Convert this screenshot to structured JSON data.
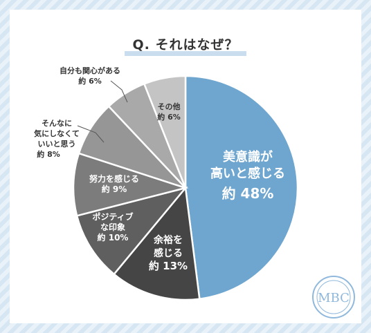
{
  "title": "Q. それはなぜ？",
  "colors": {
    "slice_1": "#6fa6cf",
    "slice_2": "#454545",
    "slice_3": "#5f5f5f",
    "slice_4": "#7c7c7c",
    "slice_5": "#969696",
    "slice_6": "#a9a9a9",
    "slice_7": "#c4c4c4",
    "logo": "#8fb8dc"
  },
  "logo_text": "MBC",
  "chart_data": {
    "type": "pie",
    "title": "Q. それはなぜ？",
    "start_angle_deg": 0,
    "direction": "clockwise",
    "slices": [
      {
        "label_lines": [
          "美意識が",
          "高いと感じる"
        ],
        "value_label": "約 48%",
        "value": 48
      },
      {
        "label_lines": [
          "余裕を",
          "感じる"
        ],
        "value_label": "約 13%",
        "value": 13
      },
      {
        "label_lines": [
          "ポジティブ",
          "な印象"
        ],
        "value_label": "約 10%",
        "value": 10
      },
      {
        "label_lines": [
          "努力を感じる"
        ],
        "value_label": "約 9%",
        "value": 9
      },
      {
        "label_lines": [
          "そんなに",
          "気にしなくて",
          "いいと思う"
        ],
        "value_label": "約 8%",
        "value": 8
      },
      {
        "label_lines": [
          "自分も関心がある"
        ],
        "value_label": "約 6%",
        "value": 6
      },
      {
        "label_lines": [
          "その他"
        ],
        "value_label": "約 6%",
        "value": 6
      }
    ]
  }
}
